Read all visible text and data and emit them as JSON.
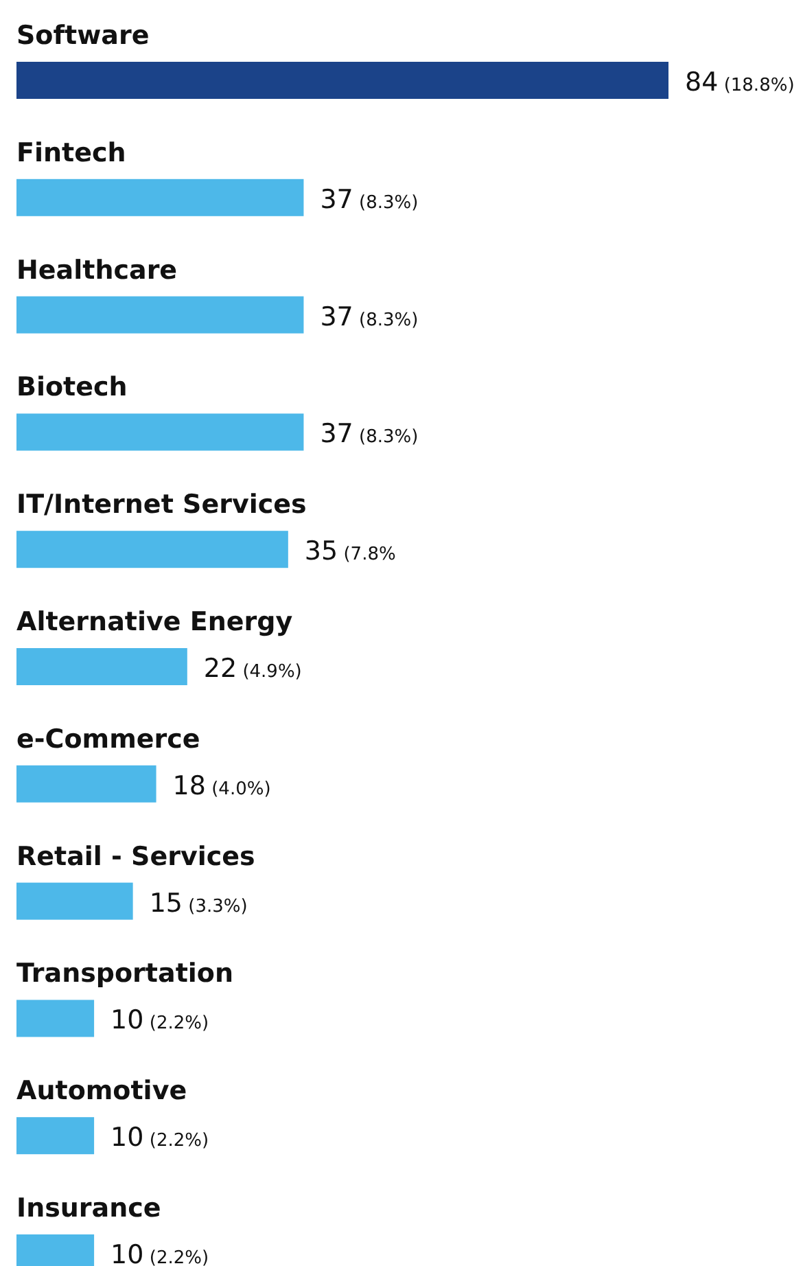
{
  "chart_data": {
    "type": "bar",
    "orientation": "horizontal",
    "categories": [
      "Software",
      "Fintech",
      "Healthcare",
      "Biotech",
      "IT/Internet Services",
      "Alternative Energy",
      "e-Commerce",
      "Retail - Services",
      "Transportation",
      "Automotive",
      "Insurance"
    ],
    "values": [
      84,
      37,
      37,
      37,
      35,
      22,
      18,
      15,
      10,
      10,
      10
    ],
    "colors": [
      "#1b4389",
      "#4db8e9",
      "#4db8e9",
      "#4db8e9",
      "#4db8e9",
      "#4db8e9",
      "#4db8e9",
      "#4db8e9",
      "#4db8e9",
      "#4db8e9",
      "#4db8e9"
    ],
    "value_labels": [
      "84 (18.8%)",
      "37 (8.3%)",
      "37 (8.3%)",
      "37 (8.3%)",
      "35 (7.8%",
      "22 (4.9%)",
      "18 (4.0%)",
      "15 (3.3%)",
      "10 (2.2%)",
      "10 (2.2%)",
      "10 (2.2%)"
    ]
  }
}
